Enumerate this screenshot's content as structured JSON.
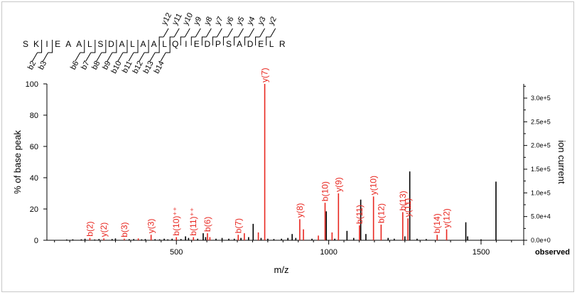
{
  "colors": {
    "matched": "#e8261f",
    "unmatched": "#000000",
    "axis": "#000000",
    "seq": "#000000"
  },
  "peptide": {
    "sequence": [
      "S",
      "K",
      "I",
      "E",
      "A",
      "A",
      "L",
      "S",
      "D",
      "A",
      "L",
      "A",
      "A",
      "L",
      "Q",
      "I",
      "E",
      "D",
      "P",
      "S",
      "A",
      "D",
      "E",
      "L",
      "R"
    ],
    "b_ions": [
      {
        "label": "b2",
        "after": 2
      },
      {
        "label": "b3",
        "after": 3
      },
      {
        "label": "b6",
        "after": 6
      },
      {
        "label": "b7",
        "after": 7
      },
      {
        "label": "b8",
        "after": 8
      },
      {
        "label": "b9",
        "after": 9
      },
      {
        "label": "b10",
        "after": 10
      },
      {
        "label": "b11",
        "after": 11
      },
      {
        "label": "b12",
        "after": 12
      },
      {
        "label": "b13",
        "after": 13
      },
      {
        "label": "b14",
        "after": 14
      }
    ],
    "y_ions": [
      {
        "label": "y12",
        "after": 13
      },
      {
        "label": "y11",
        "after": 14
      },
      {
        "label": "y10",
        "after": 15
      },
      {
        "label": "y9",
        "after": 16
      },
      {
        "label": "y8",
        "after": 17
      },
      {
        "label": "y7",
        "after": 18
      },
      {
        "label": "y6",
        "after": 19
      },
      {
        "label": "y5",
        "after": 20
      },
      {
        "label": "y4",
        "after": 21
      },
      {
        "label": "y3",
        "after": 22
      },
      {
        "label": "y2",
        "after": 23
      }
    ]
  },
  "chart_data": {
    "type": "bar",
    "xlabel": "m/z",
    "ylabel": "% of base peak",
    "y2label": "ion current",
    "x_footer": "observed",
    "xlim": [
      75,
      1640
    ],
    "ylim": [
      0,
      100
    ],
    "y2lim": [
      0,
      330000
    ],
    "xticks": [
      500,
      1000,
      1500
    ],
    "yticks": [
      0,
      20,
      40,
      60,
      80,
      100
    ],
    "y2ticks": [
      {
        "value": 0,
        "label": "0.0e+0"
      },
      {
        "value": 50000,
        "label": "5.0e+4"
      },
      {
        "value": 100000,
        "label": "1.0e+5"
      },
      {
        "value": 150000,
        "label": "1.5e+5"
      },
      {
        "value": 200000,
        "label": "2.0e+5"
      },
      {
        "value": 250000,
        "label": "2.5e+5"
      },
      {
        "value": 300000,
        "label": "3.0e+5"
      }
    ],
    "grid": false,
    "matched_peaks": [
      {
        "mz": 216,
        "intensity": 1.5,
        "label": "b(2)"
      },
      {
        "mz": 262,
        "intensity": 1.2,
        "label": "y(2)"
      },
      {
        "mz": 329,
        "intensity": 1.0,
        "label": "b(3)"
      },
      {
        "mz": 375,
        "intensity": 1.2
      },
      {
        "mz": 417,
        "intensity": 3.5,
        "label": "y(3)"
      },
      {
        "mz": 500,
        "intensity": 2.0,
        "label": "b(10)⁺⁺"
      },
      {
        "mz": 556,
        "intensity": 2.0,
        "label": "b(11)⁺⁺"
      },
      {
        "mz": 602,
        "intensity": 4.5,
        "label": "b(6)"
      },
      {
        "mz": 610,
        "intensity": 2.0
      },
      {
        "mz": 703,
        "intensity": 3.5,
        "label": "b(7)"
      },
      {
        "mz": 723,
        "intensity": 4.5
      },
      {
        "mz": 769,
        "intensity": 5.0
      },
      {
        "mz": 790,
        "intensity": 100,
        "label": "y(7)"
      },
      {
        "mz": 905,
        "intensity": 13.5,
        "label": "y(8)"
      },
      {
        "mz": 917,
        "intensity": 7.0
      },
      {
        "mz": 966,
        "intensity": 3.0
      },
      {
        "mz": 988,
        "intensity": 24.0,
        "label": "b(10)"
      },
      {
        "mz": 1011,
        "intensity": 5.0
      },
      {
        "mz": 1032,
        "intensity": 30.0,
        "label": "y(9)"
      },
      {
        "mz": 1101,
        "intensity": 9.5,
        "label": "b(11)"
      },
      {
        "mz": 1147,
        "intensity": 28.0,
        "label": "y(10)"
      },
      {
        "mz": 1172,
        "intensity": 10.0,
        "label": "b(12)"
      },
      {
        "mz": 1243,
        "intensity": 18.0,
        "label": "b(13)"
      },
      {
        "mz": 1260,
        "intensity": 14.0,
        "label": "y(11)"
      },
      {
        "mz": 1356,
        "intensity": 3.5,
        "label": "b(14)"
      },
      {
        "mz": 1387,
        "intensity": 7.0,
        "label": "y(12)"
      }
    ],
    "unmatched_peaks": [
      {
        "mz": 140,
        "intensity": 0.5
      },
      {
        "mz": 160,
        "intensity": 0.6
      },
      {
        "mz": 188,
        "intensity": 0.6
      },
      {
        "mz": 200,
        "intensity": 1.0
      },
      {
        "mz": 232,
        "intensity": 0.5
      },
      {
        "mz": 246,
        "intensity": 0.8
      },
      {
        "mz": 289,
        "intensity": 0.8
      },
      {
        "mz": 300,
        "intensity": 1.2
      },
      {
        "mz": 345,
        "intensity": 0.7
      },
      {
        "mz": 360,
        "intensity": 0.8
      },
      {
        "mz": 386,
        "intensity": 0.6
      },
      {
        "mz": 398,
        "intensity": 0.8
      },
      {
        "mz": 430,
        "intensity": 0.7
      },
      {
        "mz": 445,
        "intensity": 0.6
      },
      {
        "mz": 460,
        "intensity": 1.0
      },
      {
        "mz": 472,
        "intensity": 0.6
      },
      {
        "mz": 486,
        "intensity": 1.0
      },
      {
        "mz": 515,
        "intensity": 0.8
      },
      {
        "mz": 530,
        "intensity": 2.5
      },
      {
        "mz": 540,
        "intensity": 1.5
      },
      {
        "mz": 570,
        "intensity": 1.0
      },
      {
        "mz": 588,
        "intensity": 4.5
      },
      {
        "mz": 596,
        "intensity": 2.0
      },
      {
        "mz": 630,
        "intensity": 1.0
      },
      {
        "mz": 650,
        "intensity": 1.5
      },
      {
        "mz": 672,
        "intensity": 1.0
      },
      {
        "mz": 690,
        "intensity": 1.0
      },
      {
        "mz": 712,
        "intensity": 1.5
      },
      {
        "mz": 737,
        "intensity": 2.0
      },
      {
        "mz": 752,
        "intensity": 10.5
      },
      {
        "mz": 778,
        "intensity": 1.5
      },
      {
        "mz": 800,
        "intensity": 1.0
      },
      {
        "mz": 820,
        "intensity": 0.8
      },
      {
        "mz": 845,
        "intensity": 1.0
      },
      {
        "mz": 866,
        "intensity": 1.5
      },
      {
        "mz": 880,
        "intensity": 4.0
      },
      {
        "mz": 892,
        "intensity": 1.5
      },
      {
        "mz": 945,
        "intensity": 1.0
      },
      {
        "mz": 992,
        "intensity": 18.5
      },
      {
        "mz": 1020,
        "intensity": 1.0
      },
      {
        "mz": 1060,
        "intensity": 6.0
      },
      {
        "mz": 1082,
        "intensity": 1.5
      },
      {
        "mz": 1105,
        "intensity": 26.0
      },
      {
        "mz": 1122,
        "intensity": 4.0
      },
      {
        "mz": 1195,
        "intensity": 1.5
      },
      {
        "mz": 1215,
        "intensity": 1.0
      },
      {
        "mz": 1250,
        "intensity": 2.5
      },
      {
        "mz": 1266,
        "intensity": 44.0
      },
      {
        "mz": 1290,
        "intensity": 1.0
      },
      {
        "mz": 1320,
        "intensity": 0.8
      },
      {
        "mz": 1450,
        "intensity": 11.5
      },
      {
        "mz": 1456,
        "intensity": 2.5
      },
      {
        "mz": 1500,
        "intensity": 0.6
      },
      {
        "mz": 1549,
        "intensity": 37.5
      }
    ]
  }
}
